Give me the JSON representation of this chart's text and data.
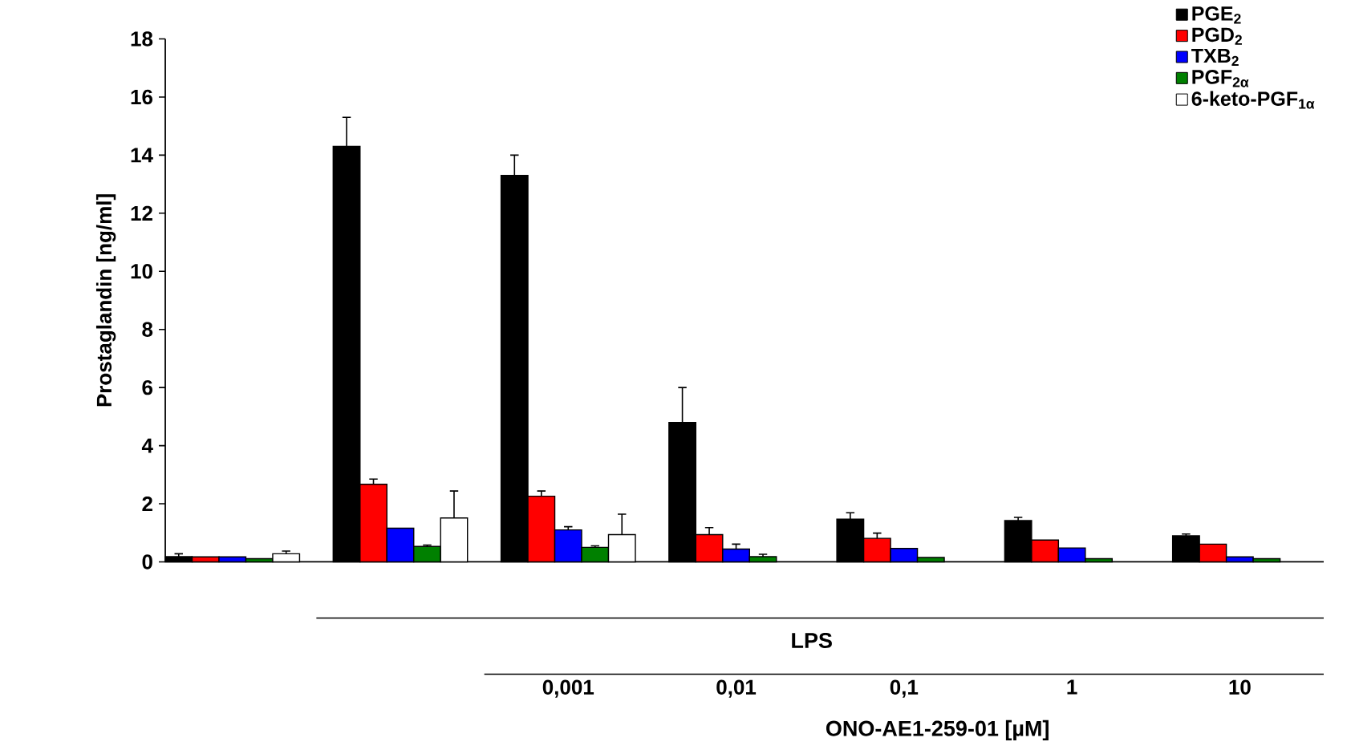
{
  "chart_data": {
    "type": "bar",
    "ylabel": "Prostaglandin [ng/ml]",
    "xlabel": "ONO-AE1-259-01 [µM]",
    "annotations": [
      "LPS"
    ],
    "categories": [
      null,
      null,
      "0,001",
      "0,01",
      "0,1",
      "1",
      "10"
    ],
    "ylim": [
      0,
      18
    ],
    "yticks": [
      0,
      2,
      4,
      6,
      8,
      10,
      12,
      14,
      16,
      18
    ],
    "legend": "top right",
    "grid": false,
    "series": [
      {
        "name": "PGE$_{2}$",
        "color": "#000000",
        "values": [
          0.18,
          14.3,
          13.3,
          4.8,
          1.47,
          1.42,
          0.9
        ],
        "errors": [
          [
            0.18,
            0.28
          ],
          [
            14.3,
            15.3
          ],
          [
            13.3,
            14.0
          ],
          [
            4.8,
            6.0
          ],
          [
            1.47,
            1.69
          ],
          [
            1.42,
            1.53
          ],
          [
            0.9,
            0.96
          ]
        ]
      },
      {
        "name": "PGD$_{2}$",
        "color": "#ff0000",
        "values": [
          0.17,
          2.67,
          2.26,
          0.94,
          0.81,
          0.75,
          0.61
        ],
        "errors": [
          null,
          [
            2.67,
            2.85
          ],
          [
            2.26,
            2.44
          ],
          [
            0.94,
            1.18
          ],
          [
            0.81,
            0.99
          ],
          null,
          null
        ]
      },
      {
        "name": "TXB$_{2}$",
        "color": "#0000ff",
        "values": [
          0.17,
          1.16,
          1.1,
          0.44,
          0.46,
          0.48,
          0.17
        ],
        "errors": [
          null,
          null,
          [
            1.1,
            1.21
          ],
          [
            0.44,
            0.61
          ],
          null,
          null,
          null
        ]
      },
      {
        "name": "PGF$_{2α}$",
        "color": "#008000",
        "values": [
          0.11,
          0.53,
          0.5,
          0.18,
          0.15,
          0.11,
          0.11
        ],
        "errors": [
          null,
          [
            0.53,
            0.58
          ],
          [
            0.5,
            0.55
          ],
          [
            0.18,
            0.26
          ],
          null,
          null,
          null
        ]
      },
      {
        "name": "6-keto-PGF$_{1α}$",
        "color": "#ffffff",
        "values": [
          0.28,
          1.51,
          0.94,
          null,
          null,
          null,
          null
        ],
        "errors": [
          [
            0.28,
            0.37
          ],
          [
            1.51,
            2.44
          ],
          [
            0.94,
            1.64
          ],
          null,
          null,
          null,
          null
        ]
      }
    ]
  }
}
